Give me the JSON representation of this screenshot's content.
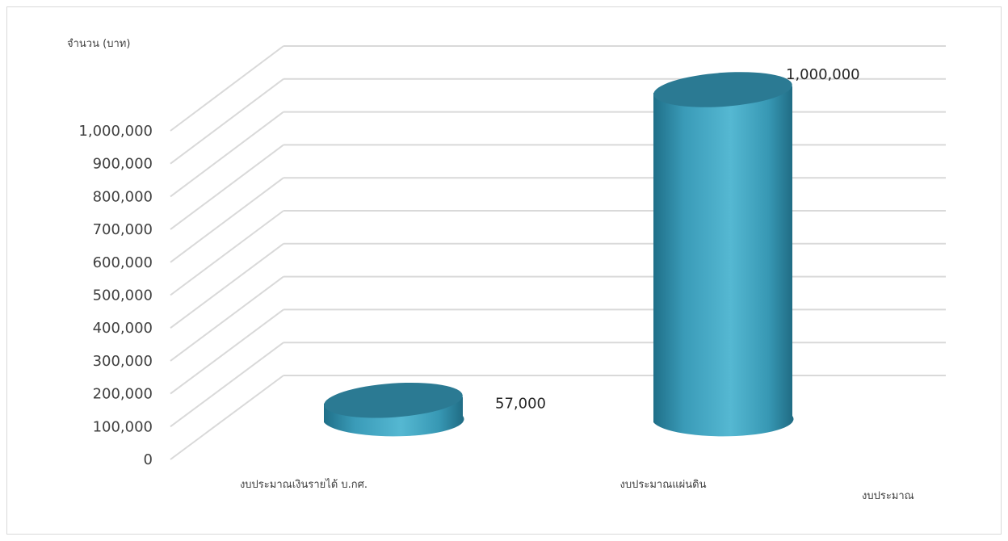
{
  "chart_data": {
    "type": "bar",
    "style": "3d-cylinder",
    "title": "",
    "ylabel": "จำนวน (บาท)",
    "xlabel": "งบประมาณ",
    "categories": [
      "งบประมาณเงินรายได้ บ.กศ.",
      "งบประมาณแผ่นดิน"
    ],
    "series": [
      {
        "values": [
          57000,
          1000000
        ],
        "data_labels": [
          "57,000",
          "1,000,000"
        ]
      }
    ],
    "ylim": [
      0,
      1000000
    ],
    "y_ticks": [
      "0",
      "100,000",
      "200,000",
      "300,000",
      "400,000",
      "500,000",
      "600,000",
      "700,000",
      "800,000",
      "900,000",
      "1,000,000"
    ],
    "grid": true,
    "legend": "none",
    "colors": {
      "bar": "#4aacc6",
      "bar_dark": "#2e8aa3",
      "bar_top": "#2b7a93",
      "grid": "#d9d9d9"
    }
  }
}
